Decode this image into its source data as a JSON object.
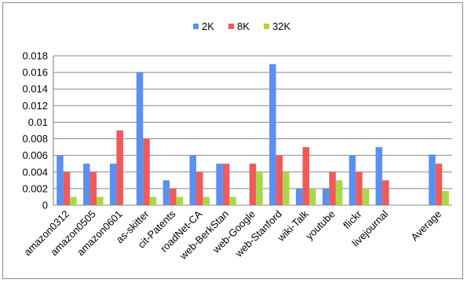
{
  "chart_data": {
    "type": "bar",
    "title": "",
    "xlabel": "",
    "ylabel": "",
    "categories": [
      "amazon0312",
      "amazon0505",
      "amazon0601",
      "as-skitter",
      "cit-Patents",
      "roadNet-CA",
      "web-BerkStan",
      "web-Google",
      "web-Stanford",
      "wiki-Talk",
      "youtube",
      "flickr",
      "livejournal",
      "",
      "Average"
    ],
    "series": [
      {
        "name": "2K",
        "color": "#5b8ff2",
        "values": [
          0.006,
          0.005,
          0.005,
          0.016,
          0.003,
          0.006,
          0.005,
          0,
          0.017,
          0.002,
          0.002,
          0.006,
          0.007,
          null,
          0.0061
        ]
      },
      {
        "name": "8K",
        "color": "#f05a5a",
        "values": [
          0.004,
          0.004,
          0.009,
          0.008,
          0.002,
          0.004,
          0.005,
          0.005,
          0.006,
          0.007,
          0.004,
          0.004,
          0.003,
          null,
          0.005
        ]
      },
      {
        "name": "32K",
        "color": "#a8d84a",
        "values": [
          0.001,
          0.001,
          0,
          0.001,
          0.001,
          0.001,
          0.001,
          0.004,
          0.004,
          0.002,
          0.003,
          0.002,
          0,
          null,
          0.0017
        ]
      }
    ],
    "ylim": [
      0,
      0.018
    ],
    "yticks": [
      "0",
      "0.002",
      "0.004",
      "0.006",
      "0.008",
      "0.01",
      "0.012",
      "0.014",
      "0.016",
      "0.018"
    ],
    "grid": true,
    "legend": "top-center"
  }
}
